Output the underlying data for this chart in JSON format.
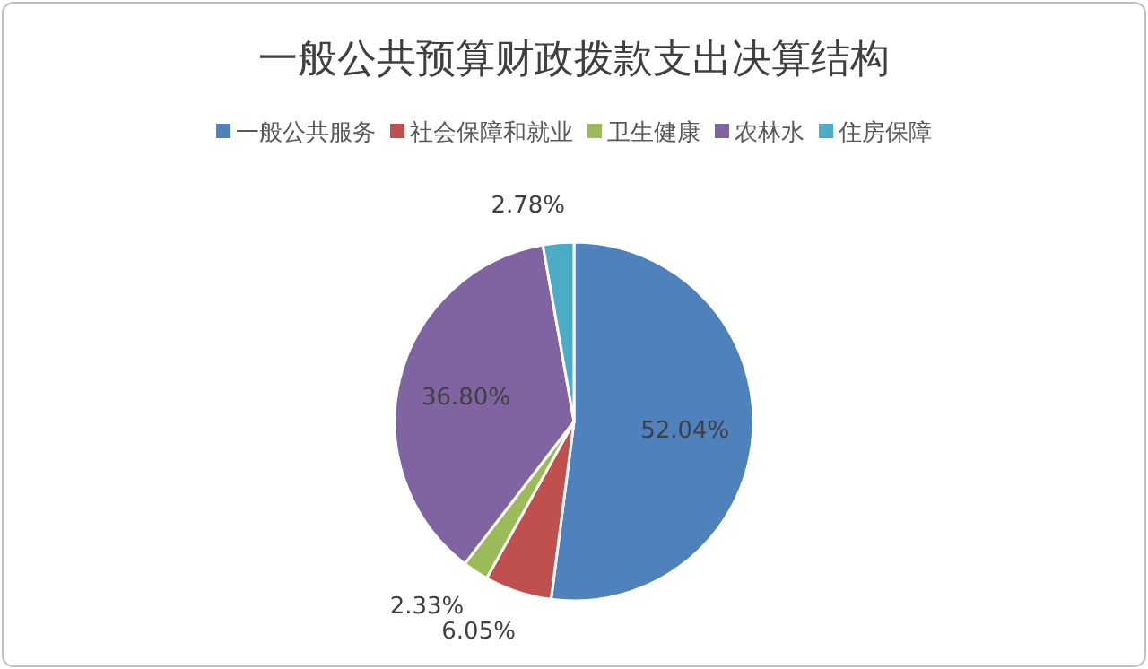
{
  "chart_data": {
    "type": "pie",
    "title": "一般公共预算财政拨款支出决算结构",
    "categories": [
      "一般公共服务",
      "社会保障和就业",
      "卫生健康",
      "农林水",
      "住房保障"
    ],
    "values": [
      52.04,
      6.05,
      2.33,
      36.8,
      2.78
    ],
    "colors": [
      "#4f81bd",
      "#c0504d",
      "#9bbb59",
      "#8064a2",
      "#4bacc6"
    ],
    "value_labels": [
      "52.04%",
      "6.05%",
      "2.33%",
      "36.80%",
      "2.78%"
    ],
    "legend": "top"
  }
}
